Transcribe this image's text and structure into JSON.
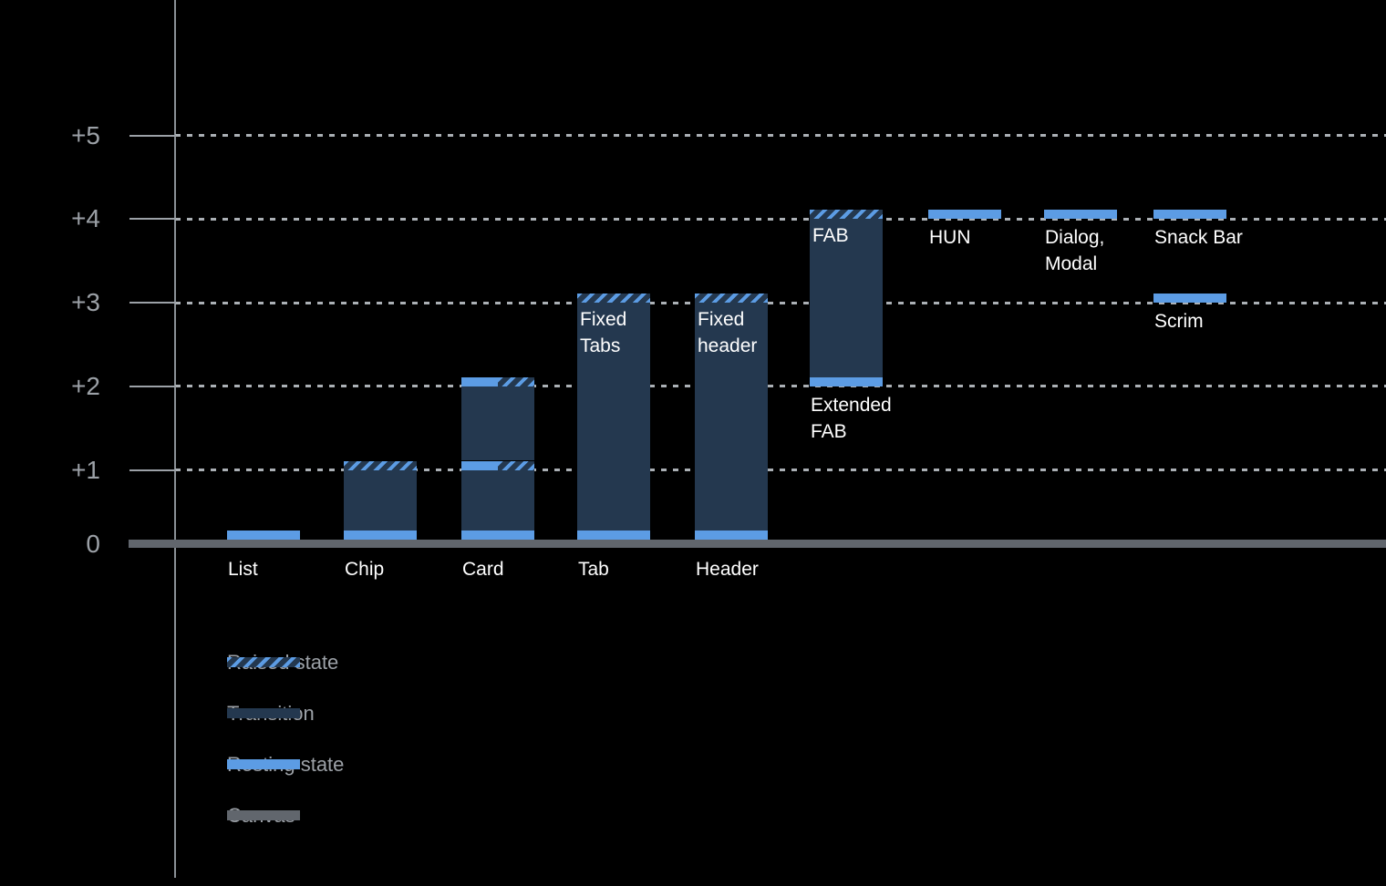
{
  "chart_data": {
    "type": "bar",
    "description": "Elevation range chart for UI components, measured in elevation levels above the canvas",
    "y_axis": {
      "tick_labels": [
        "+5",
        "+4",
        "+3",
        "+2",
        "+1",
        "0"
      ],
      "tick_values": [
        5,
        4,
        3,
        2,
        1,
        0
      ],
      "range": [
        0,
        5.5
      ],
      "grid": "dotted horizontal lines at +1 through +5"
    },
    "bars": [
      {
        "name": "list",
        "label_lines": [
          "List"
        ],
        "label_pos": "below-axis",
        "base": 0,
        "segments": [
          {
            "kind": "resting",
            "from": 0,
            "to": 0.1
          }
        ]
      },
      {
        "name": "chip",
        "label_lines": [
          "Chip"
        ],
        "label_pos": "below-axis",
        "base": 0,
        "segments": [
          {
            "kind": "resting",
            "from": 0,
            "to": 0.1
          },
          {
            "kind": "transition",
            "from": 0.1,
            "to": 1
          },
          {
            "kind": "raised",
            "from": 1,
            "to": 1.1
          }
        ]
      },
      {
        "name": "card",
        "label_lines": [
          "Card"
        ],
        "label_pos": "below-axis",
        "base": 0,
        "segments": [
          {
            "kind": "resting",
            "from": 0,
            "to": 0.1
          },
          {
            "kind": "transition",
            "from": 0.1,
            "to": 1
          },
          {
            "kind": "resting+raised",
            "from": 1,
            "to": 1.1
          },
          {
            "kind": "transition",
            "from": 1.1,
            "to": 2
          },
          {
            "kind": "resting+raised",
            "from": 2,
            "to": 2.1
          }
        ]
      },
      {
        "name": "tab",
        "label_lines": [
          "Tab"
        ],
        "label_pos": "below-axis",
        "base": 0,
        "inner_label_lines": [
          "Fixed",
          "Tabs"
        ],
        "segments": [
          {
            "kind": "resting",
            "from": 0,
            "to": 0.1
          },
          {
            "kind": "transition",
            "from": 0.1,
            "to": 3
          },
          {
            "kind": "raised",
            "from": 3,
            "to": 3.1
          }
        ]
      },
      {
        "name": "header",
        "label_lines": [
          "Header"
        ],
        "label_pos": "below-axis",
        "base": 0,
        "inner_label_lines": [
          "Fixed",
          "header"
        ],
        "segments": [
          {
            "kind": "resting",
            "from": 0,
            "to": 0.1
          },
          {
            "kind": "transition",
            "from": 0.1,
            "to": 3
          },
          {
            "kind": "raised",
            "from": 3,
            "to": 3.1
          }
        ]
      },
      {
        "name": "extended-fab",
        "label_lines": [
          "Extended",
          "FAB"
        ],
        "label_pos": "below-bar",
        "base": 2,
        "inner_label_lines": [
          "FAB"
        ],
        "segments": [
          {
            "kind": "resting",
            "from": 2,
            "to": 2.1
          },
          {
            "kind": "transition",
            "from": 2.1,
            "to": 4
          },
          {
            "kind": "raised",
            "from": 4,
            "to": 4.1
          }
        ]
      },
      {
        "name": "hun",
        "label_lines": [
          "HUN"
        ],
        "label_pos": "below-bar",
        "base": 4,
        "segments": [
          {
            "kind": "resting",
            "from": 4,
            "to": 4.1
          }
        ]
      },
      {
        "name": "dialog-modal",
        "label_lines": [
          "Dialog,",
          "Modal"
        ],
        "label_pos": "below-bar",
        "base": 4,
        "segments": [
          {
            "kind": "resting",
            "from": 4,
            "to": 4.1
          }
        ]
      },
      {
        "name": "snack-bar",
        "label_lines": [
          "Snack Bar"
        ],
        "label_pos": "below-bar",
        "base": 4,
        "segments": [
          {
            "kind": "resting",
            "from": 4,
            "to": 4.1
          }
        ]
      },
      {
        "name": "scrim",
        "label_lines": [
          "Scrim"
        ],
        "label_pos": "below-bar",
        "base": 3,
        "segments": [
          {
            "kind": "resting",
            "from": 3,
            "to": 3.1
          }
        ]
      }
    ],
    "legend": {
      "position": "bottom-left",
      "items": [
        {
          "id": "raised",
          "label": "Raised state",
          "swatch": "hatched-diagonal-stripes"
        },
        {
          "id": "transition",
          "label": "Transition",
          "swatch": "solid-dark-blue"
        },
        {
          "id": "resting",
          "label": "Resting state",
          "swatch": "solid-light-blue"
        },
        {
          "id": "canvas",
          "label": "Canvas",
          "swatch": "solid-gray"
        }
      ]
    },
    "colors": {
      "background": "#000000",
      "resting": "#5C9CE4",
      "transition": "#24384F",
      "canvas": "#61666D",
      "raised_bg": "#24384F",
      "raised_stripe": "#5C9CE4",
      "axis_text": "#9CA1A7",
      "grid_line": "#ABB0B5",
      "axis_line": "#8A9096",
      "bar_label": "#FFFFFF"
    }
  }
}
